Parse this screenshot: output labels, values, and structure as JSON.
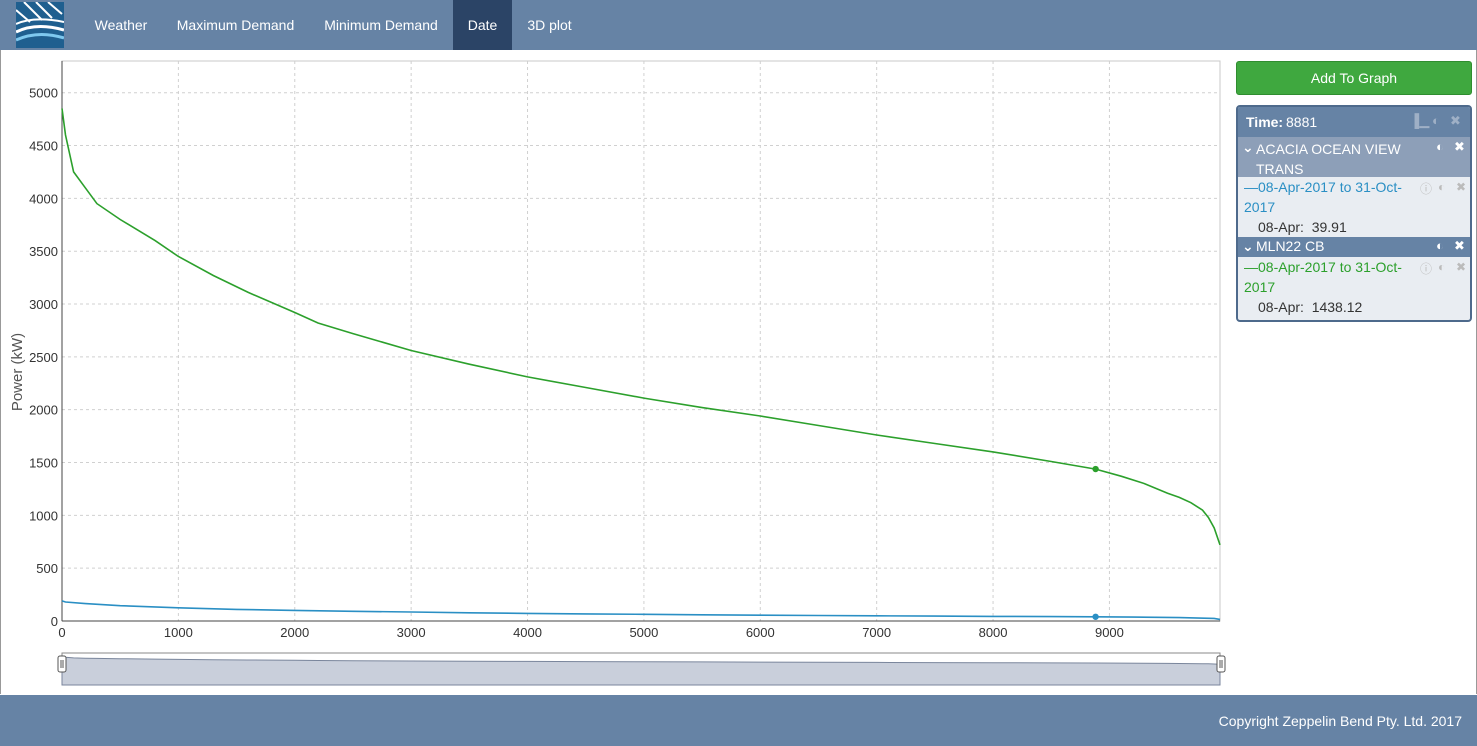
{
  "nav": {
    "tabs": [
      {
        "label": "Weather",
        "active": false
      },
      {
        "label": "Maximum Demand",
        "active": false
      },
      {
        "label": "Minimum Demand",
        "active": false
      },
      {
        "label": "Date",
        "active": true
      },
      {
        "label": "3D plot",
        "active": false
      }
    ],
    "logo_icon": "zeppelin-logo-icon"
  },
  "chart_data": {
    "type": "line",
    "xlabel": "",
    "ylabel": "Power (kW)",
    "xlim": [
      0,
      9950
    ],
    "ylim": [
      0,
      5300
    ],
    "x_ticks": [
      0,
      1000,
      2000,
      3000,
      4000,
      5000,
      6000,
      7000,
      8000,
      9000
    ],
    "y_ticks": [
      0,
      500,
      1000,
      1500,
      2000,
      2500,
      3000,
      3500,
      4000,
      4500,
      5000
    ],
    "grid": true,
    "series": [
      {
        "name": "MLN22 CB",
        "color": "#2ca02c",
        "x": [
          0,
          30,
          100,
          200,
          300,
          500,
          800,
          1000,
          1300,
          1600,
          2000,
          2200,
          2500,
          3000,
          3500,
          4000,
          4500,
          5000,
          5500,
          6000,
          6500,
          7000,
          7500,
          8000,
          8500,
          8881,
          9100,
          9300,
          9500,
          9600,
          9700,
          9800,
          9850,
          9900,
          9950
        ],
        "y": [
          4850,
          4600,
          4250,
          4100,
          3950,
          3800,
          3600,
          3450,
          3270,
          3110,
          2920,
          2820,
          2720,
          2560,
          2430,
          2310,
          2210,
          2110,
          2020,
          1940,
          1850,
          1760,
          1680,
          1600,
          1510,
          1438,
          1370,
          1300,
          1210,
          1170,
          1120,
          1050,
          980,
          880,
          720
        ]
      },
      {
        "name": "ACACIA OCEAN VIEW TRANS",
        "color": "#2a8fc4",
        "x": [
          0,
          30,
          200,
          500,
          1000,
          1500,
          2000,
          2500,
          3000,
          3500,
          4000,
          4500,
          5000,
          5500,
          6000,
          6500,
          7000,
          7500,
          8000,
          8500,
          8881,
          9200,
          9600,
          9900,
          9950
        ],
        "y": [
          190,
          180,
          165,
          145,
          125,
          110,
          100,
          92,
          85,
          78,
          72,
          67,
          63,
          59,
          55,
          52,
          49,
          46,
          44,
          42,
          40,
          37,
          32,
          25,
          15
        ]
      }
    ],
    "markers": [
      {
        "series": "MLN22 CB",
        "x": 8881,
        "y": 1438.12
      },
      {
        "series": "ACACIA OCEAN VIEW TRANS",
        "x": 8881,
        "y": 39.91
      }
    ]
  },
  "panel": {
    "add_button": "Add To Graph",
    "time_label": "Time:",
    "time_value": "8881",
    "groups": [
      {
        "title": "ACACIA OCEAN VIEW TRANS",
        "series_label": "08-Apr-2017 to 31-Oct-2017",
        "color": "#2a8fc4",
        "value_label": "08-Apr:",
        "value": "39.91"
      },
      {
        "title": "MLN22 CB",
        "series_label": "08-Apr-2017 to 31-Oct-2017",
        "color": "#2ca02c",
        "value_label": "08-Apr:",
        "value": "1438.12"
      }
    ]
  },
  "footer": {
    "copyright": "Copyright Zeppelin Bend Pty. Ltd. 2017"
  }
}
